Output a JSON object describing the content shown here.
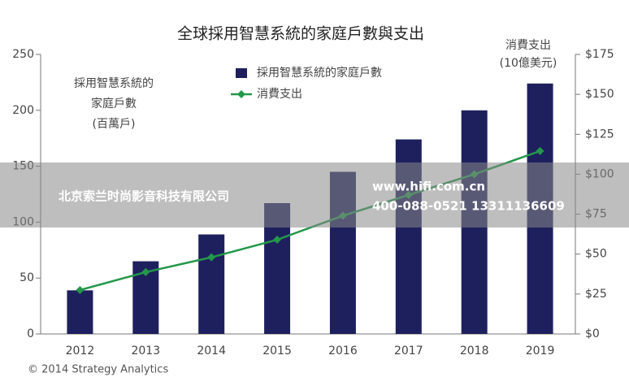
{
  "chart_data": {
    "type": "bar-line",
    "title": "全球採用智慧系統的家庭戶數與支出",
    "ylabel": [
      "採用智慧系統的",
      "家庭戶數",
      "(百萬戶)"
    ],
    "y2label": [
      "消費支出",
      "(10億美元)"
    ],
    "categories": [
      "2012",
      "2013",
      "2014",
      "2015",
      "2016",
      "2017",
      "2018",
      "2019"
    ],
    "series": [
      {
        "name": "採用智慧系統的家庭戶數",
        "color": "#1e205e",
        "type": "bar",
        "values": [
          39,
          65,
          89,
          117,
          145,
          174,
          200,
          224
        ]
      },
      {
        "name": "消費支出",
        "color": "#23974a",
        "type": "line",
        "axis": "y2",
        "values": [
          27.5,
          38.7,
          48,
          59,
          74,
          87,
          100,
          114.5
        ]
      }
    ],
    "ylim": [
      0,
      250
    ],
    "yticks": [
      0,
      50,
      100,
      150,
      200,
      250
    ],
    "y2lim": [
      0,
      175
    ],
    "y2ticks": [
      {
        "value": 0,
        "label": "$0"
      },
      {
        "value": 25,
        "label": "$25"
      },
      {
        "value": 50,
        "label": "$50"
      },
      {
        "value": 75,
        "label": "$75"
      },
      {
        "value": 100,
        "label": "$100"
      },
      {
        "value": 125,
        "label": "$125"
      },
      {
        "value": 150,
        "label": "$150"
      },
      {
        "value": 175,
        "label": "$175"
      }
    ],
    "grid": false,
    "source": "© 2014 Strategy Analytics"
  },
  "watermark": {
    "company": "北京索兰时尚影音科技有限公司",
    "url": "www.hifi.com.cn",
    "phone": "400-088-0521  13311136609"
  }
}
